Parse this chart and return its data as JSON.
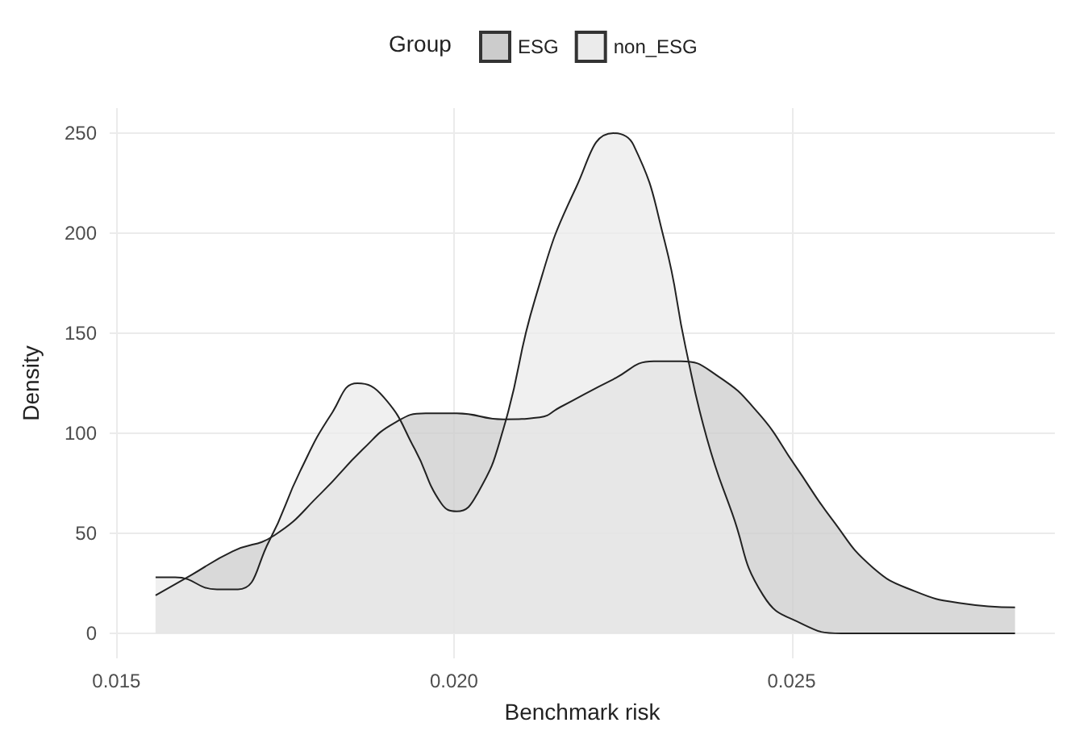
{
  "chart_data": {
    "type": "area",
    "xlabel": "Benchmark risk",
    "ylabel": "Density",
    "legend_title": "Group",
    "legend": "top",
    "xlim": [
      0.0149,
      0.0289
    ],
    "xticks": [
      {
        "value": 0.015,
        "label": "0.015"
      },
      {
        "value": 0.02,
        "label": "0.020"
      },
      {
        "value": 0.025,
        "label": "0.025"
      }
    ],
    "ylim": [
      -12.5,
      262.5
    ],
    "yticks": [
      0,
      50,
      100,
      150,
      200,
      250
    ],
    "grid": true,
    "series": [
      {
        "name": "ESG",
        "color": "#cccccc",
        "x": [
          0.01558,
          0.0161,
          0.01672,
          0.01734,
          0.01803,
          0.01865,
          0.01911,
          0.01958,
          0.02004,
          0.02073,
          0.02127,
          0.02157,
          0.02236,
          0.02296,
          0.02336,
          0.02389,
          0.02451,
          0.02505,
          0.0256,
          0.0262,
          0.02683,
          0.02752,
          0.02831
        ],
        "values": [
          19,
          29,
          41,
          49,
          70,
          92,
          105,
          110,
          110,
          107,
          108,
          113,
          127,
          136,
          136,
          129,
          110,
          84,
          57,
          33,
          21,
          15,
          13
        ]
      },
      {
        "name": "non_ESG",
        "color": "#ebebeb",
        "x": [
          0.01558,
          0.01587,
          0.01649,
          0.0168,
          0.01726,
          0.01772,
          0.01819,
          0.01857,
          0.01896,
          0.01942,
          0.01981,
          0.02004,
          0.02035,
          0.02073,
          0.0212,
          0.02181,
          0.02236,
          0.02266,
          0.02312,
          0.02343,
          0.02375,
          0.02412,
          0.02458,
          0.02514,
          0.02574,
          0.02831
        ],
        "values": [
          28,
          28,
          22,
          22,
          46,
          81,
          110,
          125,
          118,
          92,
          65,
          61,
          70,
          102,
          167,
          223,
          250,
          244,
          196,
          143,
          97,
          60,
          19,
          5,
          0,
          0
        ]
      }
    ]
  }
}
